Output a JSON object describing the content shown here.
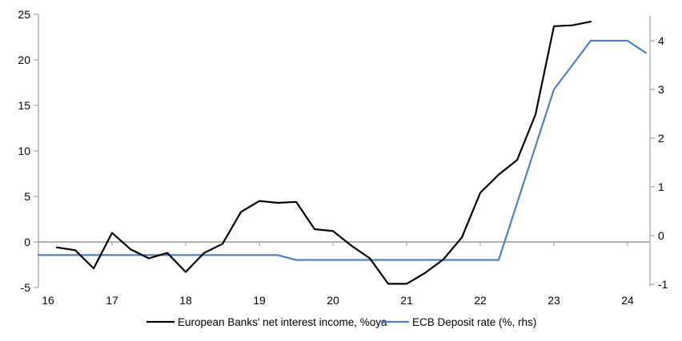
{
  "chart_data": {
    "type": "line",
    "title": "",
    "x_axis": {
      "tick_labels": [
        "16",
        "17",
        "18",
        "19",
        "20",
        "21",
        "22",
        "23",
        "24"
      ],
      "range": [
        16,
        24.3
      ],
      "tick_style": "ticks-on-zero-line"
    },
    "left_axis": {
      "tick_labels": [
        "25",
        "20",
        "15",
        "10",
        "5",
        "0",
        "-5"
      ],
      "ticks": [
        25,
        20,
        15,
        10,
        5,
        0,
        -5
      ],
      "range": [
        -5,
        25
      ]
    },
    "right_axis": {
      "tick_labels": [
        "4",
        "3",
        "2",
        "1",
        "0",
        "-1"
      ],
      "ticks": [
        4,
        3,
        2,
        1,
        0,
        -1
      ],
      "range": [
        -1,
        4.5
      ]
    },
    "series": [
      {
        "name": "European Banks' net interest income, %oya",
        "axis": "left",
        "color": "#000000",
        "x": [
          16.25,
          16.5,
          16.75,
          17.0,
          17.25,
          17.5,
          17.75,
          18.0,
          18.25,
          18.5,
          18.75,
          19.0,
          19.25,
          19.5,
          19.75,
          20.0,
          20.25,
          20.5,
          20.75,
          21.0,
          21.25,
          21.5,
          21.75,
          22.0,
          22.25,
          22.5,
          22.75,
          23.0,
          23.25,
          23.5
        ],
        "values": [
          -0.6,
          -0.9,
          -2.9,
          1.0,
          -0.8,
          -1.8,
          -1.2,
          -3.3,
          -1.2,
          -0.2,
          3.3,
          4.5,
          4.3,
          4.4,
          1.4,
          1.2,
          -0.4,
          -1.8,
          -4.6,
          -4.6,
          -3.4,
          -1.9,
          0.5,
          5.4,
          7.4,
          9.0,
          14.0,
          23.7,
          23.8,
          24.2
        ]
      },
      {
        "name": "ECB Deposit rate (%, rhs)",
        "axis": "right",
        "color": "#4F81BD",
        "x": [
          16.0,
          19.25,
          19.5,
          22.25,
          23.0,
          23.5,
          24.0,
          24.25
        ],
        "values": [
          -0.4,
          -0.4,
          -0.5,
          -0.5,
          3.0,
          4.0,
          4.0,
          3.75
        ]
      }
    ],
    "legend": {
      "position": "bottom-center",
      "items": [
        {
          "label": "European Banks' net interest income, %oya",
          "color": "#000000"
        },
        {
          "label": "ECB Deposit rate (%, rhs)",
          "color": "#4F81BD"
        }
      ]
    },
    "grid": "zero-line-only",
    "colors": {
      "axis": "#A6A6A6",
      "zero_line": "#A6A6A6",
      "background": "#FFFFFF"
    }
  }
}
